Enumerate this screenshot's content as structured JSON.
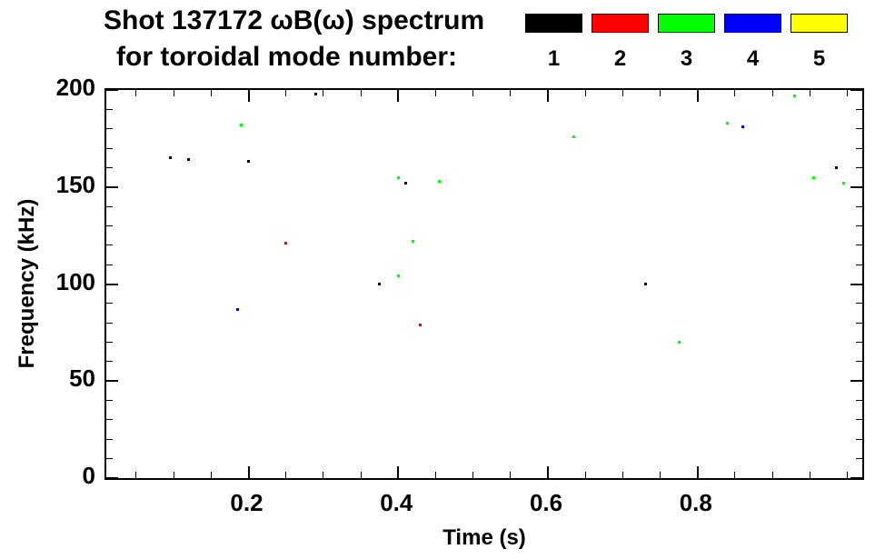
{
  "header": {
    "title": "Shot 137172 ωB(ω) spectrum",
    "subtitle": "for toroidal mode number:"
  },
  "legend": {
    "modes": [
      {
        "label": "1",
        "color": "#000000"
      },
      {
        "label": "2",
        "color": "#ff0000"
      },
      {
        "label": "3",
        "color": "#00ff00"
      },
      {
        "label": "4",
        "color": "#0000ff"
      },
      {
        "label": "5",
        "color": "#ffff00"
      }
    ]
  },
  "chart_data": {
    "type": "scatter",
    "title": "Shot 137172 ωB(ω) spectrum for toroidal mode number: 1 2 3 4 5",
    "xlabel": "Time (s)",
    "ylabel": "Frequency (kHz)",
    "xlim": [
      0.01,
      1.02
    ],
    "ylim": [
      0,
      200
    ],
    "xticks": [
      0.2,
      0.4,
      0.6,
      0.8
    ],
    "xtick_labels": [
      "0.2",
      "0.4",
      "0.6",
      "0.8"
    ],
    "xtick_minor": 0.05,
    "yticks": [
      0,
      50,
      100,
      150,
      200
    ],
    "ytick_labels": [
      "0",
      "50",
      "100",
      "150",
      "200"
    ],
    "ytick_minor": 10,
    "grid": false,
    "legend_position": "top-right",
    "series": [
      {
        "name": "n=1",
        "color": "#000000",
        "points": [
          [
            0.095,
            165
          ],
          [
            0.12,
            164
          ],
          [
            0.2,
            163
          ],
          [
            0.29,
            198
          ],
          [
            0.375,
            100
          ],
          [
            0.41,
            152
          ],
          [
            0.73,
            100
          ],
          [
            0.985,
            160
          ]
        ]
      },
      {
        "name": "n=2",
        "color": "#ff0000",
        "points": [
          [
            0.25,
            121
          ],
          [
            0.43,
            79
          ]
        ]
      },
      {
        "name": "n=3",
        "color": "#00ff00",
        "points": [
          [
            0.19,
            182
          ],
          [
            0.4,
            155
          ],
          [
            0.4,
            104
          ],
          [
            0.42,
            122
          ],
          [
            0.455,
            153
          ],
          [
            0.635,
            176
          ],
          [
            0.775,
            70
          ],
          [
            0.84,
            183
          ],
          [
            0.93,
            197
          ],
          [
            0.955,
            155
          ],
          [
            0.995,
            152
          ]
        ]
      },
      {
        "name": "n=4",
        "color": "#0000ff",
        "points": [
          [
            0.185,
            87
          ],
          [
            0.86,
            181
          ]
        ]
      },
      {
        "name": "n=5",
        "color": "#ffff00",
        "points": []
      }
    ]
  }
}
